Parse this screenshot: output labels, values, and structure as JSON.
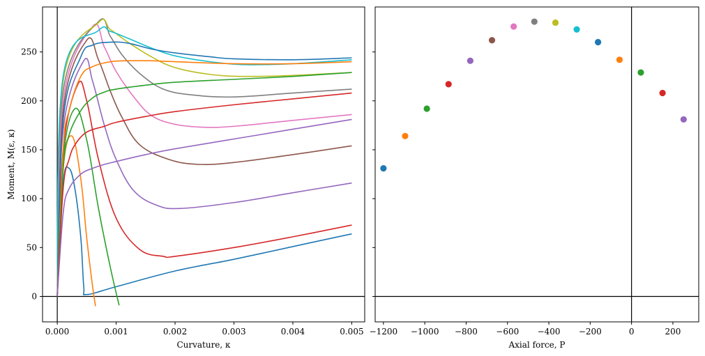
{
  "palette": [
    "#1f77b4",
    "#ff7f0e",
    "#2ca02c",
    "#d62728",
    "#9467bd",
    "#8c564b",
    "#e377c2",
    "#7f7f7f",
    "#bcbd22",
    "#17becf"
  ],
  "chart_data": [
    {
      "type": "line",
      "xlabel": "Curvature, κ",
      "ylabel": "Moment, M(ε, κ)",
      "xlim": [
        -0.00025,
        0.00522
      ],
      "ylim": [
        -26,
        296
      ],
      "xticks": [
        0,
        0.001,
        0.002,
        0.003,
        0.004,
        0.005
      ],
      "xtick_labels": [
        "0.000",
        "0.001",
        "0.002",
        "0.003",
        "0.004",
        "0.005"
      ],
      "yticks": [
        0,
        50,
        100,
        150,
        200,
        250
      ],
      "ytick_labels": [
        "0",
        "50",
        "100",
        "150",
        "200",
        "250"
      ],
      "reference_lines": {
        "x": 0,
        "y": 0
      },
      "grid": false,
      "series": [
        {
          "color_index": 0,
          "x": [
            0,
            0.0001,
            0.0002,
            0.0003,
            0.0004,
            0.00045,
            0.0005,
            0.001,
            0.002,
            0.003,
            0.004,
            0.005
          ],
          "y": [
            0,
            115,
            131,
            110,
            60,
            10,
            2,
            10,
            26,
            38,
            51,
            64
          ]
        },
        {
          "color_index": 1,
          "x": [
            0,
            0.0001,
            0.00025,
            0.0004,
            0.0005,
            0.0006,
            0.00065
          ],
          "y": [
            0,
            130,
            164,
            120,
            60,
            10,
            -10
          ]
        },
        {
          "color_index": 2,
          "x": [
            0,
            0.0001,
            0.0003,
            0.0005,
            0.0007,
            0.0009,
            0.00105
          ],
          "y": [
            0,
            140,
            192,
            160,
            90,
            30,
            -9
          ]
        },
        {
          "color_index": 3,
          "x": [
            0,
            0.0001,
            0.00035,
            0.0005,
            0.0007,
            0.001,
            0.0014,
            0.0018,
            0.002,
            0.003,
            0.004,
            0.005
          ],
          "y": [
            0,
            150,
            217,
            200,
            140,
            80,
            48,
            41,
            41,
            50,
            61,
            73
          ]
        },
        {
          "color_index": 4,
          "x": [
            0,
            0.0001,
            0.00045,
            0.0006,
            0.0008,
            0.001,
            0.0013,
            0.0017,
            0.0021,
            0.003,
            0.004,
            0.005
          ],
          "y": [
            0,
            170,
            241,
            220,
            175,
            140,
            108,
            93,
            90,
            96,
            106,
            116
          ]
        },
        {
          "color_index": 5,
          "x": [
            0,
            0.0001,
            0.0005,
            0.0007,
            0.0009,
            0.0011,
            0.0014,
            0.0019,
            0.0024,
            0.003,
            0.004,
            0.005
          ],
          "y": [
            0,
            190,
            262,
            242,
            210,
            183,
            155,
            140,
            135,
            137,
            145,
            154
          ]
        },
        {
          "color_index": 6,
          "x": [
            0,
            0.0001,
            0.0006,
            0.0008,
            0.001,
            0.0013,
            0.0016,
            0.002,
            0.0025,
            0.003,
            0.004,
            0.005
          ],
          "y": [
            0,
            200,
            276,
            255,
            230,
            204,
            185,
            176,
            173,
            174,
            180,
            186
          ]
        },
        {
          "color_index": 7,
          "x": [
            0,
            0.0001,
            0.0007,
            0.0009,
            0.0011,
            0.0014,
            0.0018,
            0.0023,
            0.003,
            0.004,
            0.005
          ],
          "y": [
            0,
            210,
            281,
            266,
            247,
            228,
            212,
            206,
            204,
            208,
            212
          ]
        },
        {
          "color_index": 8,
          "x": [
            0,
            0.0001,
            0.0007,
            0.0009,
            0.0012,
            0.0016,
            0.002,
            0.0026,
            0.0032,
            0.004,
            0.005
          ],
          "y": [
            0,
            220,
            280,
            273,
            260,
            245,
            234,
            227,
            225,
            226,
            229
          ]
        },
        {
          "color_index": 9,
          "x": [
            0,
            0.0001,
            0.0007,
            0.0009,
            0.0012,
            0.0016,
            0.002,
            0.0026,
            0.0032,
            0.004,
            0.005
          ],
          "y": [
            0,
            225,
            272,
            271,
            264,
            254,
            246,
            240,
            237,
            238,
            242
          ]
        },
        {
          "color_index": 0,
          "x": [
            0,
            0.0001,
            0.0004,
            0.0006,
            0.0009,
            0.0012,
            0.0016,
            0.002,
            0.0026,
            0.003,
            0.004,
            0.005
          ],
          "y": [
            0,
            180,
            245,
            257,
            260,
            259,
            253,
            249,
            245,
            243,
            242,
            244
          ]
        },
        {
          "color_index": 1,
          "x": [
            0,
            0.0001,
            0.0002,
            0.0004,
            0.0006,
            0.0009,
            0.0012,
            0.0016,
            0.002,
            0.003,
            0.004,
            0.005
          ],
          "y": [
            0,
            150,
            190,
            225,
            235,
            240,
            241,
            241,
            240,
            238,
            238,
            240
          ]
        },
        {
          "color_index": 2,
          "x": [
            0,
            0.0001,
            0.0002,
            0.0004,
            0.0006,
            0.0008,
            0.001,
            0.0015,
            0.002,
            0.003,
            0.004,
            0.005
          ],
          "y": [
            0,
            130,
            165,
            190,
            203,
            209,
            212,
            216,
            219,
            222,
            225,
            229
          ]
        },
        {
          "color_index": 3,
          "x": [
            0,
            0.0001,
            0.0002,
            0.0003,
            0.0005,
            0.0008,
            0.001,
            0.0015,
            0.002,
            0.003,
            0.004,
            0.005
          ],
          "y": [
            0,
            110,
            140,
            155,
            168,
            174,
            178,
            184,
            189,
            196,
            202,
            208
          ]
        },
        {
          "color_index": 4,
          "x": [
            0,
            0.0001,
            0.0002,
            0.0004,
            0.0006,
            0.0008,
            0.001,
            0.0015,
            0.002,
            0.003,
            0.004,
            0.005
          ],
          "y": [
            0,
            85,
            110,
            125,
            131,
            135,
            138,
            145,
            151,
            161,
            171,
            181
          ]
        }
      ]
    },
    {
      "type": "scatter",
      "xlabel": "Axial force, P",
      "ylabel": "",
      "xlim": [
        -1240,
        325
      ],
      "ylim": [
        -26,
        296
      ],
      "xticks": [
        -1200,
        -1000,
        -800,
        -600,
        -400,
        -200,
        0,
        200
      ],
      "xtick_labels": [
        "−1200",
        "−1000",
        "−800",
        "−600",
        "−400",
        "−200",
        "0",
        "200"
      ],
      "yticks": [
        0,
        50,
        100,
        150,
        200,
        250
      ],
      "ytick_labels": [],
      "reference_lines": {
        "x": 0,
        "y": 0
      },
      "grid": false,
      "points": [
        {
          "x": -1200,
          "y": 131,
          "color_index": 0
        },
        {
          "x": -1095,
          "y": 164,
          "color_index": 1
        },
        {
          "x": -990,
          "y": 192,
          "color_index": 2
        },
        {
          "x": -885,
          "y": 217,
          "color_index": 3
        },
        {
          "x": -780,
          "y": 241,
          "color_index": 4
        },
        {
          "x": -675,
          "y": 262,
          "color_index": 5
        },
        {
          "x": -570,
          "y": 276,
          "color_index": 6
        },
        {
          "x": -470,
          "y": 281,
          "color_index": 7
        },
        {
          "x": -368,
          "y": 280,
          "color_index": 8
        },
        {
          "x": -265,
          "y": 273,
          "color_index": 9
        },
        {
          "x": -162,
          "y": 260,
          "color_index": 0
        },
        {
          "x": -58,
          "y": 242,
          "color_index": 1
        },
        {
          "x": 45,
          "y": 229,
          "color_index": 2
        },
        {
          "x": 150,
          "y": 208,
          "color_index": 3
        },
        {
          "x": 252,
          "y": 181,
          "color_index": 4
        }
      ]
    }
  ]
}
